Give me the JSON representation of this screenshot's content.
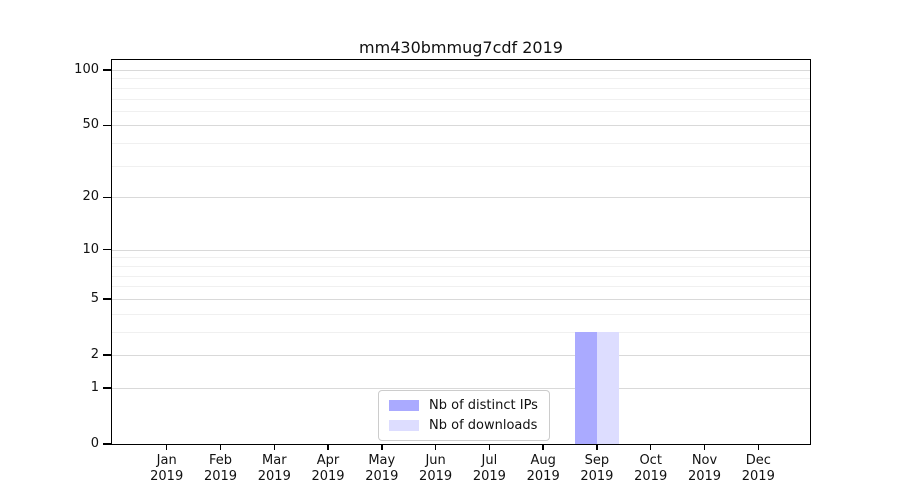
{
  "chart_data": {
    "type": "bar",
    "title": "mm430bmmug7cdf 2019",
    "categories": [
      "Jan",
      "Feb",
      "Mar",
      "Apr",
      "May",
      "Jun",
      "Jul",
      "Aug",
      "Sep",
      "Oct",
      "Nov",
      "Dec"
    ],
    "x_year": "2019",
    "series": [
      {
        "name": "Nb of distinct IPs",
        "color": "#aaaaff",
        "values": [
          0,
          0,
          0,
          0,
          0,
          0,
          0,
          0,
          3,
          0,
          0,
          0
        ]
      },
      {
        "name": "Nb of downloads",
        "color": "#ddddff",
        "values": [
          0,
          0,
          0,
          0,
          0,
          0,
          0,
          0,
          3,
          0,
          0,
          0
        ]
      }
    ],
    "y_axis": {
      "scale": "log10(1+v)",
      "major_ticks": [
        0,
        1,
        2,
        5,
        10,
        20,
        50,
        100
      ],
      "minor_ticks": [
        3,
        4,
        6,
        7,
        8,
        9,
        30,
        40,
        60,
        70,
        80,
        90
      ],
      "ylim": [
        0,
        113
      ]
    },
    "legend": {
      "position": "lower center",
      "entries": [
        "Nb of distinct IPs",
        "Nb of downloads"
      ]
    },
    "grid": true
  },
  "style": {
    "major_grid_color": "#d9d9d9",
    "minor_grid_color": "#f0f0f0",
    "spine_color": "#000000",
    "text_color": "#111111"
  }
}
